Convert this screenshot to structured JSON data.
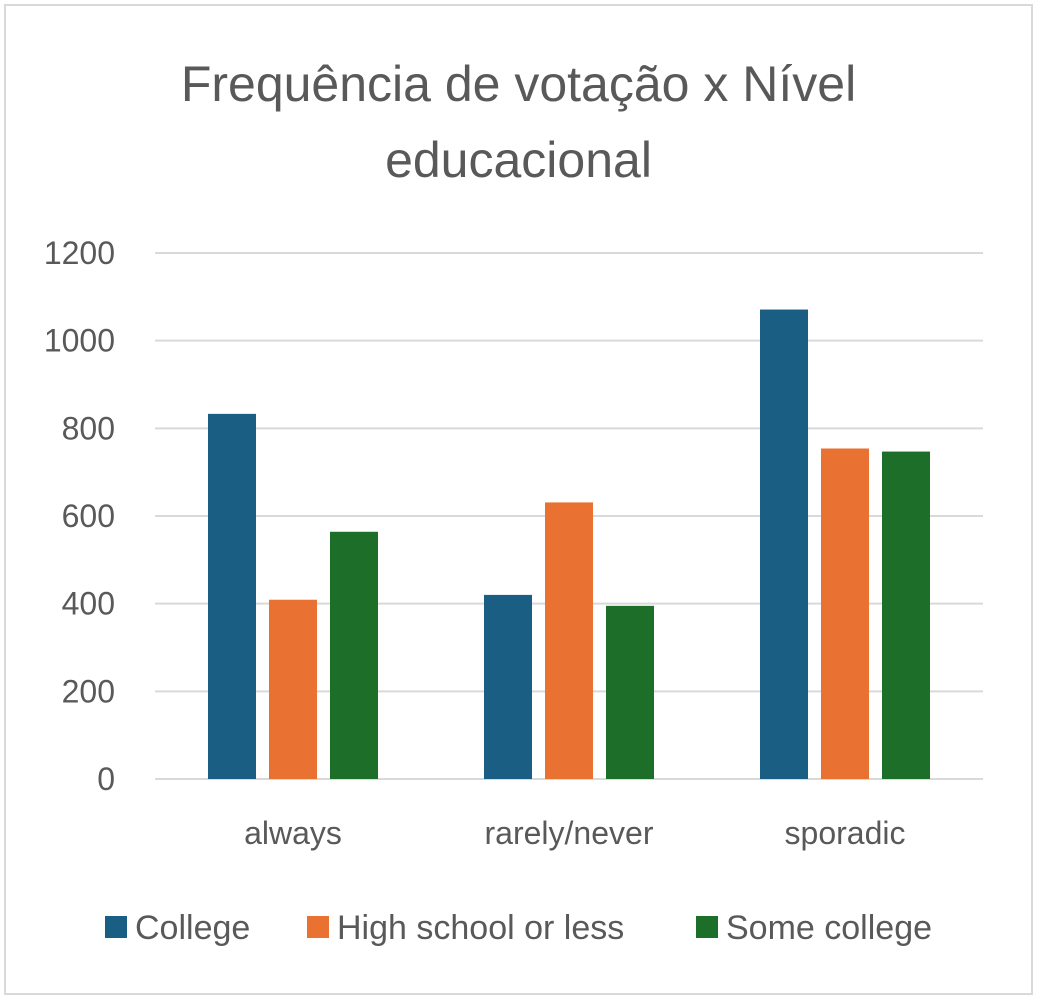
{
  "chart_data": {
    "type": "bar",
    "title_lines": [
      "Frequência de votação x Nível",
      "educacional"
    ],
    "xlabel": "",
    "ylabel": "",
    "categories": [
      "always",
      "rarely/never",
      "sporadic"
    ],
    "ylim": [
      0,
      1200
    ],
    "yticks": [
      0,
      200,
      400,
      600,
      800,
      1000,
      1200
    ],
    "grid": true,
    "legend_position": "bottom",
    "series": [
      {
        "name": "College",
        "color": "#1a5f83",
        "values": [
          833,
          420,
          1071
        ]
      },
      {
        "name": "High school or less",
        "color": "#e97233",
        "values": [
          409,
          631,
          754
        ]
      },
      {
        "name": "Some college",
        "color": "#1c6e28",
        "values": [
          564,
          395,
          747
        ]
      }
    ]
  }
}
